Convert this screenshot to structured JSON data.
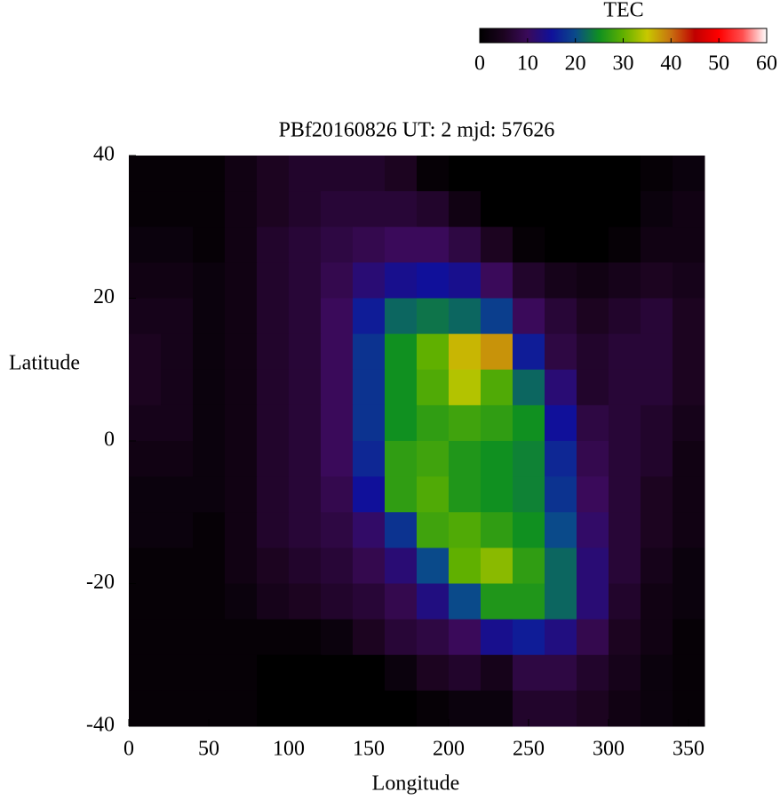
{
  "chart_data": {
    "type": "heatmap",
    "title": "PBf20160826  UT: 2  mjd: 57626",
    "xlabel": "Longitude",
    "ylabel": "Latitude",
    "colorbar_label": "TEC",
    "xlim": [
      0,
      360
    ],
    "ylim": [
      -40,
      40
    ],
    "xticks": [
      0,
      50,
      100,
      150,
      200,
      250,
      300,
      350
    ],
    "yticks": [
      -40,
      -20,
      0,
      20,
      40
    ],
    "clim": [
      0,
      60
    ],
    "cticks": [
      0,
      10,
      20,
      30,
      40,
      50,
      60
    ],
    "colormap": [
      [
        0,
        "#000000"
      ],
      [
        5,
        "#1c0420"
      ],
      [
        10,
        "#3a0a5a"
      ],
      [
        15,
        "#10109a"
      ],
      [
        20,
        "#0a4a8a"
      ],
      [
        25,
        "#109020"
      ],
      [
        30,
        "#60b000"
      ],
      [
        35,
        "#c8c800"
      ],
      [
        40,
        "#c87010"
      ],
      [
        45,
        "#c00000"
      ],
      [
        50,
        "#ff0000"
      ],
      [
        55,
        "#ff5050"
      ],
      [
        60,
        "#ffffff"
      ]
    ],
    "xbins": [
      0,
      20,
      40,
      60,
      80,
      100,
      120,
      140,
      160,
      180,
      200,
      220,
      240,
      260,
      280,
      300,
      320,
      340,
      360
    ],
    "ybins": [
      40,
      35,
      30,
      25,
      20,
      15,
      10,
      5,
      0,
      -5,
      -10,
      -15,
      -20,
      -25,
      -30,
      -35,
      -40
    ],
    "values": [
      [
        1,
        1,
        1,
        3,
        5,
        6,
        6,
        6,
        5,
        1,
        0,
        0,
        0,
        0,
        0,
        0,
        1,
        2
      ],
      [
        1,
        1,
        1,
        3,
        5,
        6,
        7,
        7,
        7,
        6,
        3,
        0,
        0,
        0,
        0,
        0,
        2,
        3
      ],
      [
        2,
        2,
        1,
        3,
        6,
        7,
        8,
        9,
        10,
        10,
        8,
        5,
        1,
        0,
        0,
        1,
        3,
        3
      ],
      [
        3,
        3,
        2,
        3,
        6,
        7,
        9,
        12,
        14,
        15,
        14,
        10,
        6,
        4,
        3,
        4,
        5,
        4
      ],
      [
        4,
        4,
        2,
        3,
        6,
        7,
        10,
        16,
        22,
        23,
        22,
        19,
        10,
        7,
        5,
        6,
        7,
        5
      ],
      [
        5,
        4,
        2,
        3,
        6,
        7,
        10,
        18,
        25,
        30,
        36,
        38,
        16,
        8,
        6,
        7,
        7,
        5
      ],
      [
        5,
        4,
        2,
        3,
        6,
        7,
        10,
        18,
        25,
        29,
        34,
        29,
        22,
        12,
        6,
        7,
        7,
        5
      ],
      [
        4,
        4,
        2,
        3,
        6,
        7,
        10,
        18,
        25,
        27,
        28,
        27,
        25,
        15,
        8,
        7,
        6,
        4
      ],
      [
        3,
        3,
        2,
        3,
        6,
        7,
        10,
        17,
        27,
        28,
        26,
        25,
        24,
        17,
        9,
        7,
        6,
        3
      ],
      [
        2,
        2,
        2,
        3,
        6,
        7,
        9,
        15,
        27,
        29,
        26,
        25,
        24,
        18,
        10,
        7,
        5,
        3
      ],
      [
        2,
        2,
        1,
        3,
        6,
        7,
        8,
        11,
        18,
        28,
        29,
        27,
        25,
        20,
        11,
        7,
        5,
        3
      ],
      [
        1,
        1,
        1,
        3,
        5,
        6,
        7,
        9,
        12,
        20,
        30,
        32,
        27,
        22,
        12,
        7,
        4,
        2
      ],
      [
        1,
        1,
        1,
        2,
        4,
        5,
        6,
        7,
        9,
        13,
        20,
        26,
        26,
        22,
        12,
        6,
        3,
        2
      ],
      [
        1,
        1,
        1,
        1,
        1,
        1,
        2,
        5,
        7,
        8,
        10,
        14,
        16,
        13,
        9,
        5,
        3,
        1
      ],
      [
        1,
        1,
        1,
        1,
        0,
        0,
        0,
        0,
        2,
        5,
        6,
        4,
        8,
        8,
        6,
        4,
        2,
        1
      ],
      [
        1,
        1,
        1,
        1,
        0,
        0,
        0,
        0,
        0,
        1,
        2,
        2,
        6,
        6,
        5,
        3,
        2,
        1
      ]
    ]
  }
}
